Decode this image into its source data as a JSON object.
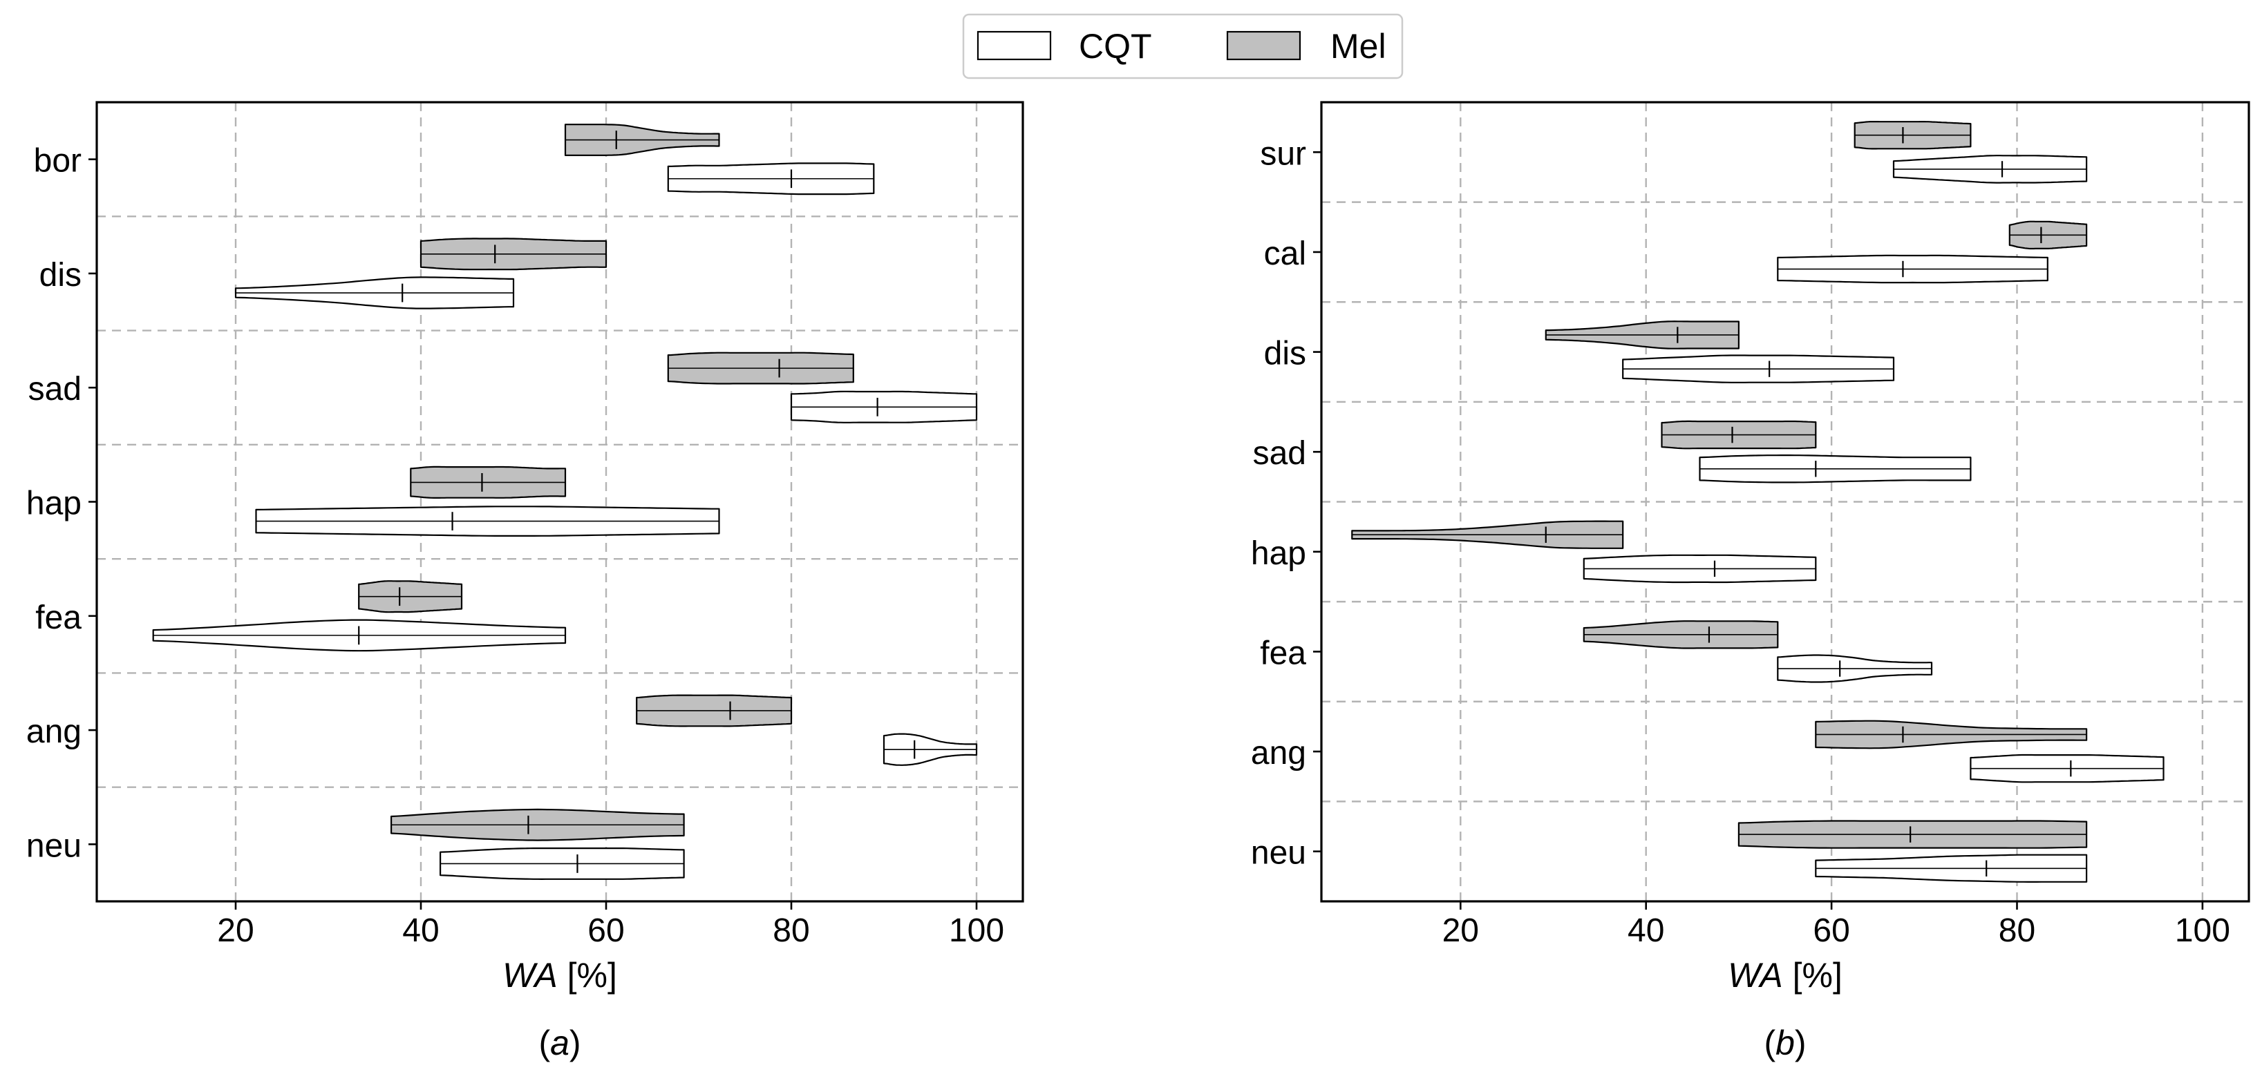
{
  "legend": {
    "position": "top-center",
    "entries": [
      {
        "label": "CQT",
        "fill": "#ffffff"
      },
      {
        "label": "Mel",
        "fill": "#c0c0c0"
      }
    ]
  },
  "chart_data": [
    {
      "type": "violin",
      "panel_label": "(a)",
      "xlabel": "WA [%]",
      "xlim": [
        5,
        105
      ],
      "xticks": [
        20,
        40,
        60,
        80,
        100
      ],
      "grid": true,
      "categories": [
        "bor",
        "dis",
        "sad",
        "hap",
        "fea",
        "ang",
        "neu"
      ],
      "series": {
        "Mel": [
          {
            "min": 55.6,
            "max": 72.2,
            "median": 61.1,
            "density": [
              1,
              1,
              1,
              0.95,
              0.75,
              0.55,
              0.45,
              0.4,
              0.4
            ]
          },
          {
            "min": 40.0,
            "max": 60.0,
            "median": 48.0,
            "density": [
              0.85,
              0.95,
              1,
              1,
              1,
              0.95,
              0.9,
              0.85,
              0.85
            ]
          },
          {
            "min": 66.7,
            "max": 86.7,
            "median": 78.7,
            "density": [
              0.85,
              0.95,
              1,
              1,
              1,
              1,
              1,
              0.95,
              0.9
            ]
          },
          {
            "min": 38.9,
            "max": 55.6,
            "median": 46.6,
            "density": [
              0.9,
              1,
              1,
              1,
              1,
              1,
              0.95,
              0.9,
              0.9
            ]
          },
          {
            "min": 33.3,
            "max": 44.4,
            "median": 37.7,
            "density": [
              0.8,
              0.9,
              1,
              1,
              1,
              0.95,
              0.9,
              0.85,
              0.8
            ]
          },
          {
            "min": 63.3,
            "max": 80.0,
            "median": 73.4,
            "density": [
              0.85,
              0.95,
              1,
              1,
              1,
              1,
              0.95,
              0.9,
              0.85
            ]
          },
          {
            "min": 36.8,
            "max": 68.4,
            "median": 51.6,
            "density": [
              0.55,
              0.7,
              0.85,
              0.95,
              1,
              0.95,
              0.85,
              0.75,
              0.7
            ]
          }
        ],
        "CQT": [
          {
            "min": 66.7,
            "max": 88.9,
            "median": 80.0,
            "density": [
              0.8,
              0.85,
              0.85,
              0.9,
              0.95,
              1,
              1,
              1,
              0.95
            ]
          },
          {
            "min": 20.0,
            "max": 50.0,
            "median": 38.0,
            "density": [
              0.3,
              0.38,
              0.5,
              0.65,
              0.85,
              1,
              1,
              0.95,
              0.9
            ]
          },
          {
            "min": 80.0,
            "max": 100.0,
            "median": 89.3,
            "density": [
              0.85,
              0.9,
              1,
              1,
              1,
              1,
              0.95,
              0.9,
              0.85
            ]
          },
          {
            "min": 22.2,
            "max": 72.2,
            "median": 43.4,
            "density": [
              0.75,
              0.8,
              0.85,
              0.9,
              0.95,
              0.95,
              0.9,
              0.85,
              0.8
            ]
          },
          {
            "min": 11.1,
            "max": 55.6,
            "median": 33.3,
            "density": [
              0.35,
              0.5,
              0.7,
              0.9,
              1,
              0.9,
              0.75,
              0.6,
              0.5
            ]
          },
          {
            "min": 90.0,
            "max": 100.0,
            "median": 93.3,
            "density": [
              0.9,
              1,
              1,
              0.9,
              0.7,
              0.5,
              0.4,
              0.35,
              0.35
            ]
          },
          {
            "min": 42.1,
            "max": 68.4,
            "median": 56.9,
            "density": [
              0.75,
              0.85,
              0.95,
              1,
              1,
              1,
              1,
              0.95,
              0.9
            ]
          }
        ]
      }
    },
    {
      "type": "violin",
      "panel_label": "(b)",
      "xlabel": "WA [%]",
      "xlim": [
        5,
        105
      ],
      "xticks": [
        20,
        40,
        60,
        80,
        100
      ],
      "grid": true,
      "categories": [
        "sur",
        "cal",
        "dis",
        "sad",
        "hap",
        "fea",
        "ang",
        "neu"
      ],
      "series": {
        "Mel": [
          {
            "min": 62.5,
            "max": 75.0,
            "median": 67.7,
            "density": [
              0.9,
              1,
              1,
              1,
              1,
              1,
              0.95,
              0.9,
              0.85
            ]
          },
          {
            "min": 79.2,
            "max": 87.5,
            "median": 82.6,
            "density": [
              0.75,
              0.9,
              1,
              1,
              1,
              0.95,
              0.9,
              0.85,
              0.8
            ]
          },
          {
            "min": 29.2,
            "max": 50.0,
            "median": 43.4,
            "density": [
              0.35,
              0.4,
              0.5,
              0.65,
              0.85,
              1,
              1,
              1,
              1
            ]
          },
          {
            "min": 41.7,
            "max": 58.3,
            "median": 49.3,
            "density": [
              0.9,
              1,
              1,
              1,
              1,
              1,
              1,
              1,
              0.95
            ]
          },
          {
            "min": 8.3,
            "max": 37.5,
            "median": 29.2,
            "density": [
              0.3,
              0.3,
              0.32,
              0.4,
              0.55,
              0.75,
              0.95,
              1,
              1
            ]
          },
          {
            "min": 33.3,
            "max": 54.2,
            "median": 46.8,
            "density": [
              0.5,
              0.6,
              0.75,
              0.9,
              1,
              1,
              1,
              1,
              0.95
            ]
          },
          {
            "min": 58.3,
            "max": 87.5,
            "median": 67.7,
            "density": [
              0.95,
              1,
              1,
              0.85,
              0.65,
              0.5,
              0.45,
              0.42,
              0.42
            ]
          },
          {
            "min": 50.0,
            "max": 87.5,
            "median": 68.5,
            "density": [
              0.85,
              0.95,
              1,
              1,
              1,
              1,
              1,
              1,
              0.95
            ]
          }
        ],
        "CQT": [
          {
            "min": 66.7,
            "max": 87.5,
            "median": 78.4,
            "density": [
              0.6,
              0.7,
              0.8,
              0.9,
              1,
              1,
              1,
              0.95,
              0.9
            ]
          },
          {
            "min": 54.2,
            "max": 83.3,
            "median": 67.7,
            "density": [
              0.85,
              0.9,
              0.95,
              1,
              1,
              1,
              0.95,
              0.9,
              0.85
            ]
          },
          {
            "min": 37.5,
            "max": 66.7,
            "median": 53.3,
            "density": [
              0.7,
              0.8,
              0.9,
              1,
              1,
              1,
              0.95,
              0.9,
              0.85
            ]
          },
          {
            "min": 45.8,
            "max": 75.0,
            "median": 58.3,
            "density": [
              0.85,
              0.95,
              1,
              1,
              0.95,
              0.9,
              0.85,
              0.85,
              0.85
            ]
          },
          {
            "min": 33.3,
            "max": 58.3,
            "median": 47.4,
            "density": [
              0.75,
              0.85,
              0.95,
              1,
              1,
              1,
              0.95,
              0.9,
              0.85
            ]
          },
          {
            "min": 54.2,
            "max": 70.8,
            "median": 60.9,
            "density": [
              0.85,
              0.95,
              1,
              0.95,
              0.8,
              0.6,
              0.5,
              0.45,
              0.45
            ]
          },
          {
            "min": 75.0,
            "max": 95.8,
            "median": 85.8,
            "density": [
              0.8,
              0.9,
              1,
              1,
              1,
              1,
              0.95,
              0.9,
              0.85
            ]
          },
          {
            "min": 58.3,
            "max": 87.5,
            "median": 76.7,
            "density": [
              0.6,
              0.65,
              0.7,
              0.8,
              0.9,
              0.95,
              1,
              1,
              1
            ]
          }
        ]
      }
    }
  ]
}
